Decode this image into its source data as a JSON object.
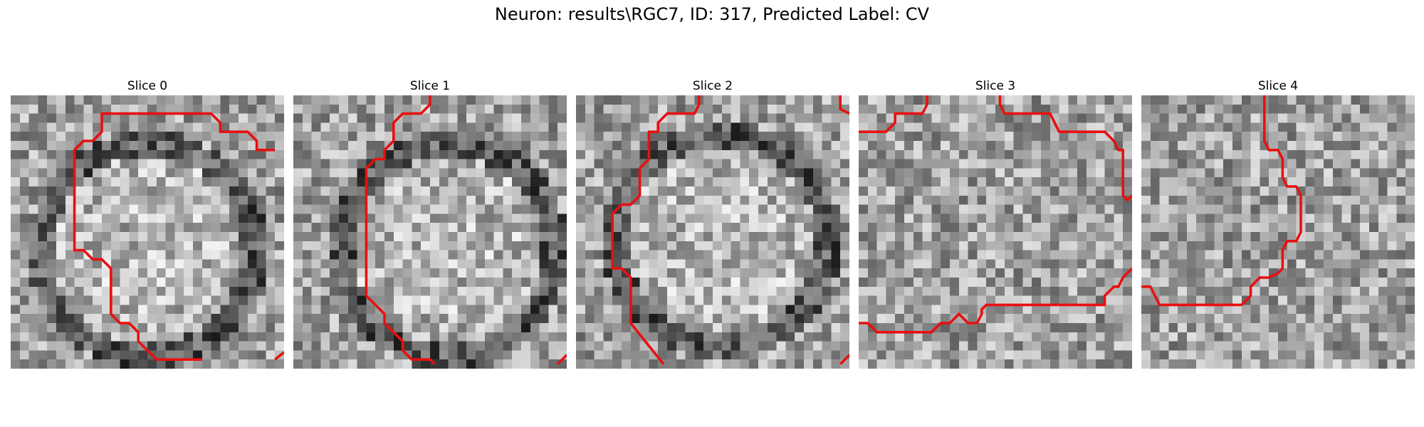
{
  "figure": {
    "title": "Neuron: results\\RGC7, ID: 317, Predicted Label: CV"
  },
  "panels": [
    {
      "title": "Slice 0",
      "seed": 11,
      "pattern": "ring",
      "contour_color": "#e81010"
    },
    {
      "title": "Slice 1",
      "seed": 23,
      "pattern": "ring",
      "contour_color": "#e81010"
    },
    {
      "title": "Slice 2",
      "seed": 37,
      "pattern": "ring",
      "contour_color": "#e81010"
    },
    {
      "title": "Slice 3",
      "seed": 41,
      "pattern": "noise",
      "contour_color": "#e81010"
    },
    {
      "title": "Slice 4",
      "seed": 53,
      "pattern": "noise",
      "contour_color": "#e81010"
    }
  ]
}
